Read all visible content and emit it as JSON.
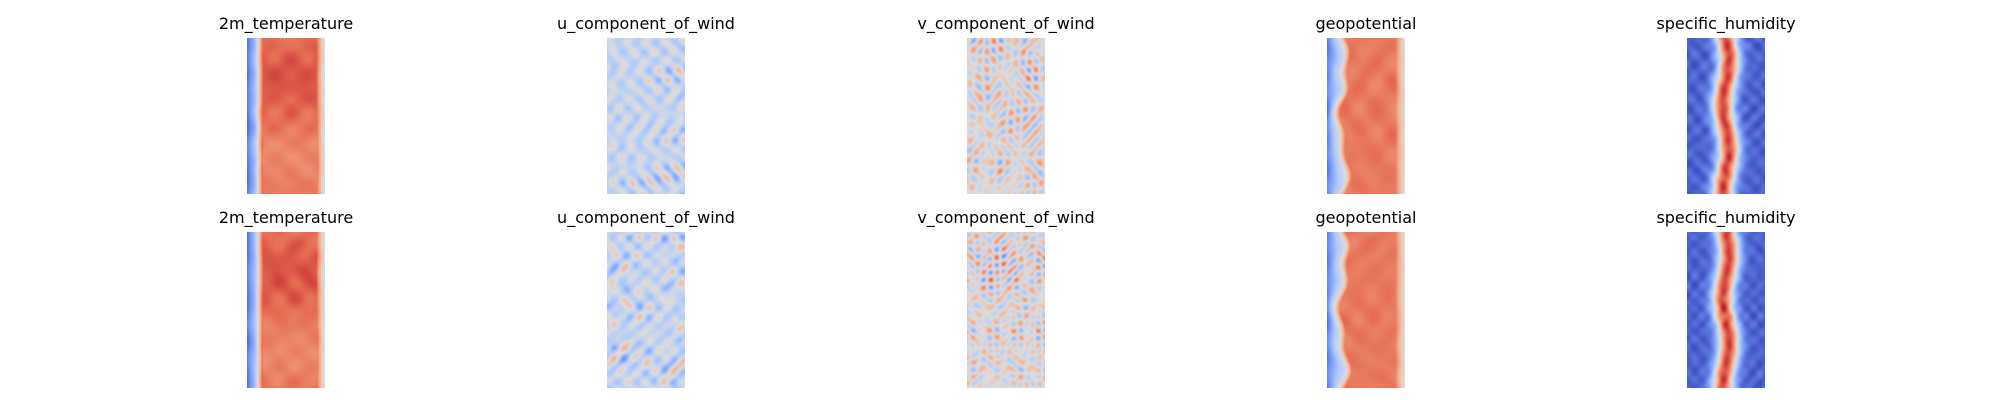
{
  "figure": {
    "colormap": "coolwarm",
    "colormap_stops": [
      "#3b4cc0",
      "#7396f5",
      "#b0cbfc",
      "#dddddd",
      "#f6b293",
      "#e56b51",
      "#b40426"
    ]
  },
  "chart_data": [
    {
      "type": "heatmap",
      "title": "2m_temperature",
      "row": 1,
      "col": 1,
      "pattern": "2m_temperature",
      "description": "Warm (red) across most of the field, cool blue strip at the left edge, light edge on right."
    },
    {
      "type": "heatmap",
      "title": "u_component_of_wind",
      "row": 1,
      "col": 2,
      "pattern": "u_component_of_wind",
      "description": "Mostly light blue with scattered red streaks and blue patches."
    },
    {
      "type": "heatmap",
      "title": "v_component_of_wind",
      "row": 1,
      "col": 3,
      "pattern": "v_component_of_wind",
      "description": "Alternating red and blue small-scale eddies."
    },
    {
      "type": "heatmap",
      "title": "geopotential",
      "row": 1,
      "col": 4,
      "pattern": "geopotential",
      "description": "Red interior, blue strip at the left, wavy boundary."
    },
    {
      "type": "heatmap",
      "title": "specific_humidity",
      "row": 1,
      "col": 5,
      "pattern": "specific_humidity",
      "description": "Dark blue sides with a narrow red central band."
    },
    {
      "type": "heatmap",
      "title": "2m_temperature",
      "row": 2,
      "col": 1,
      "pattern": "2m_temperature",
      "description": "Warm red field with blue near the left edge."
    },
    {
      "type": "heatmap",
      "title": "u_component_of_wind",
      "row": 2,
      "col": 2,
      "pattern": "u_component_of_wind",
      "description": "Light blue with red streaks and a blue patch at the right edge."
    },
    {
      "type": "heatmap",
      "title": "v_component_of_wind",
      "row": 2,
      "col": 3,
      "pattern": "v_component_of_wind",
      "description": "Fine red/blue eddies on pale background."
    },
    {
      "type": "heatmap",
      "title": "geopotential",
      "row": 2,
      "col": 4,
      "pattern": "geopotential",
      "description": "Red interior with blue on the left and lower-left."
    },
    {
      "type": "heatmap",
      "title": "specific_humidity",
      "row": 2,
      "col": 5,
      "pattern": "specific_humidity",
      "description": "Blue field with a red central band concentrated lower down."
    }
  ]
}
